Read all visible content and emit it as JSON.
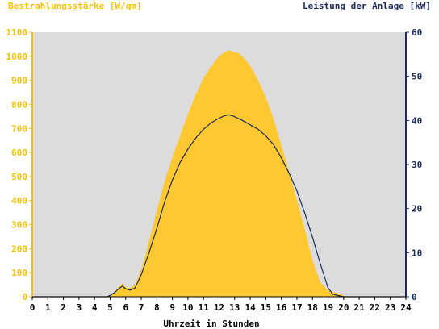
{
  "chart_data": {
    "type": "area",
    "left_axis_title": "Bestrahlungsstärke [W/qm]",
    "right_axis_title": "Leistung der Anlage [kW]",
    "xlabel": "Uhrzeit in Stunden",
    "xlim": [
      0,
      24
    ],
    "xticks": [
      "0",
      "1",
      "2",
      "3",
      "4",
      "5",
      "6",
      "7",
      "8",
      "9",
      "10",
      "11",
      "12",
      "13",
      "14",
      "15",
      "16",
      "17",
      "18",
      "19",
      "20",
      "21",
      "22",
      "23",
      "24"
    ],
    "ylim_left": [
      0,
      1100
    ],
    "yticks_left": [
      "0",
      "100",
      "200",
      "300",
      "400",
      "500",
      "600",
      "700",
      "800",
      "900",
      "1000",
      "1100"
    ],
    "ylim_right": [
      0,
      60
    ],
    "yticks_right": [
      "0",
      "10",
      "20",
      "30",
      "40",
      "50",
      "60"
    ],
    "grid": false,
    "colors": {
      "plot_bg": "#dcdcdc",
      "irradiance_fill": "#ffc830",
      "power_line": "#1a2a5a",
      "left_axis": "#f5c000",
      "right_axis": "#1a2a5a"
    },
    "series": [
      {
        "axis": "left",
        "kind": "area",
        "x": [
          0,
          4.5,
          5.0,
          5.3,
          5.6,
          5.8,
          6.0,
          6.3,
          6.6,
          7.0,
          7.5,
          8.0,
          8.5,
          9.0,
          9.5,
          10.0,
          10.5,
          11.0,
          11.5,
          12.0,
          12.3,
          12.6,
          12.9,
          13.2,
          13.5,
          14.0,
          14.5,
          15.0,
          15.5,
          16.0,
          16.5,
          17.0,
          17.5,
          18.0,
          18.5,
          19.0,
          19.3,
          19.6,
          20.0,
          20.3,
          24
        ],
        "values": [
          0,
          0,
          5,
          20,
          45,
          55,
          40,
          35,
          50,
          110,
          230,
          360,
          480,
          580,
          670,
          760,
          840,
          910,
          960,
          1000,
          1015,
          1025,
          1020,
          1015,
          1000,
          960,
          900,
          830,
          740,
          630,
          520,
          400,
          280,
          150,
          60,
          25,
          20,
          15,
          5,
          0,
          0
        ]
      },
      {
        "axis": "right",
        "kind": "line",
        "x": [
          0,
          4.8,
          5.0,
          5.3,
          5.6,
          5.8,
          6.0,
          6.3,
          6.6,
          7.0,
          7.5,
          8.0,
          8.5,
          9.0,
          9.5,
          10.0,
          10.5,
          11.0,
          11.5,
          12.0,
          12.3,
          12.6,
          12.9,
          13.2,
          13.5,
          14.0,
          14.5,
          15.0,
          15.5,
          16.0,
          16.5,
          17.0,
          17.5,
          18.0,
          18.5,
          19.0,
          19.3,
          19.6,
          20.0,
          24
        ],
        "values": [
          0,
          0,
          0.3,
          1.0,
          2.0,
          2.4,
          1.8,
          1.5,
          2.0,
          5.0,
          10.0,
          15.5,
          21.5,
          26.5,
          30.5,
          33.5,
          36.0,
          38.0,
          39.5,
          40.5,
          41.0,
          41.3,
          41.0,
          40.5,
          40.0,
          39.0,
          38.0,
          36.5,
          34.5,
          31.5,
          28.0,
          24.0,
          19.0,
          13.5,
          7.5,
          2.0,
          0.6,
          0.3,
          0,
          0
        ]
      }
    ]
  }
}
